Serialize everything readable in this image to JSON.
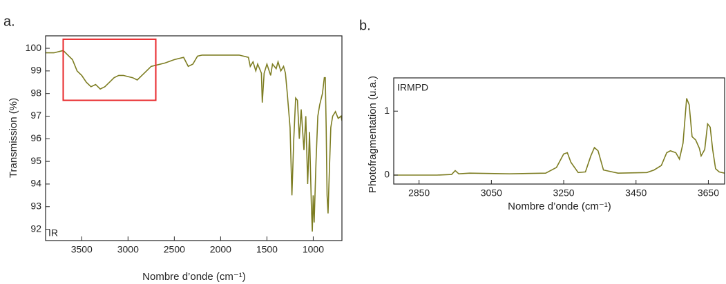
{
  "chart_data": [
    {
      "type": "line",
      "panel_label": "a.",
      "annotation": "IR",
      "xlabel": "Nombre d’onde (cm⁻¹)",
      "ylabel": "Transmission (%)",
      "color": "#7d7d22",
      "xlim": [
        3890,
        690
      ],
      "ylim": [
        91.5,
        100.55
      ],
      "xticks": [
        3500,
        3000,
        2500,
        2000,
        1500,
        1000
      ],
      "yticks": [
        92,
        93,
        94,
        95,
        96,
        97,
        98,
        99,
        100
      ],
      "highlight": {
        "xlim": [
          3700,
          2700
        ],
        "ylim": [
          97.7,
          100.4
        ],
        "color": "#e8282b"
      },
      "x": [
        3890,
        3800,
        3700,
        3650,
        3600,
        3550,
        3500,
        3450,
        3400,
        3350,
        3300,
        3250,
        3200,
        3150,
        3100,
        3050,
        3000,
        2950,
        2900,
        2850,
        2800,
        2750,
        2700,
        2600,
        2500,
        2400,
        2350,
        2300,
        2250,
        2200,
        2000,
        1800,
        1700,
        1680,
        1650,
        1620,
        1600,
        1560,
        1550,
        1530,
        1500,
        1460,
        1440,
        1400,
        1380,
        1350,
        1320,
        1300,
        1280,
        1250,
        1230,
        1210,
        1190,
        1170,
        1150,
        1130,
        1100,
        1080,
        1060,
        1040,
        1020,
        1010,
        1000,
        990,
        970,
        950,
        930,
        900,
        880,
        870,
        860,
        850,
        840,
        830,
        810,
        790,
        760,
        730,
        700,
        690
      ],
      "values": [
        99.8,
        99.8,
        99.9,
        99.7,
        99.5,
        99.0,
        98.8,
        98.5,
        98.3,
        98.4,
        98.2,
        98.3,
        98.5,
        98.7,
        98.8,
        98.8,
        98.75,
        98.7,
        98.6,
        98.8,
        99.0,
        99.2,
        99.25,
        99.35,
        99.5,
        99.6,
        99.2,
        99.3,
        99.65,
        99.7,
        99.7,
        99.7,
        99.6,
        99.2,
        99.4,
        99.0,
        99.3,
        98.9,
        97.6,
        98.9,
        99.3,
        98.8,
        99.3,
        99.1,
        99.4,
        99.0,
        99.2,
        98.9,
        98.0,
        96.5,
        93.5,
        96.0,
        97.8,
        97.7,
        96.0,
        97.3,
        95.5,
        97.0,
        94.0,
        96.3,
        93.0,
        91.9,
        93.5,
        92.3,
        95.0,
        97.0,
        97.5,
        98.0,
        98.7,
        98.7,
        96.5,
        93.5,
        92.7,
        94.0,
        96.5,
        97.0,
        97.2,
        96.9,
        97.0,
        96.8
      ]
    },
    {
      "type": "line",
      "panel_label": "b.",
      "annotation": "IRMPD",
      "xlabel": "Nombre d’onde (cm⁻¹)",
      "ylabel": "Photofragmentation (u.a.)",
      "color": "#7d7d22",
      "xlim": [
        2780,
        3695
      ],
      "ylim": [
        -0.14,
        1.52
      ],
      "xticks": [
        2850,
        3050,
        3250,
        3450,
        3650
      ],
      "yticks": [
        0,
        1
      ],
      "x": [
        2780,
        2900,
        2940,
        2950,
        2960,
        2990,
        3100,
        3200,
        3230,
        3250,
        3260,
        3270,
        3290,
        3310,
        3325,
        3335,
        3345,
        3360,
        3400,
        3480,
        3500,
        3520,
        3535,
        3545,
        3560,
        3570,
        3580,
        3590,
        3597,
        3605,
        3615,
        3625,
        3630,
        3640,
        3648,
        3655,
        3662,
        3670,
        3680,
        3695
      ],
      "values": [
        0.0,
        0.0,
        0.01,
        0.07,
        0.02,
        0.03,
        0.02,
        0.03,
        0.12,
        0.33,
        0.35,
        0.2,
        0.04,
        0.05,
        0.3,
        0.43,
        0.38,
        0.08,
        0.03,
        0.04,
        0.08,
        0.15,
        0.35,
        0.38,
        0.35,
        0.25,
        0.5,
        1.2,
        1.1,
        0.6,
        0.55,
        0.42,
        0.3,
        0.4,
        0.8,
        0.75,
        0.4,
        0.1,
        0.05,
        0.03
      ]
    }
  ]
}
